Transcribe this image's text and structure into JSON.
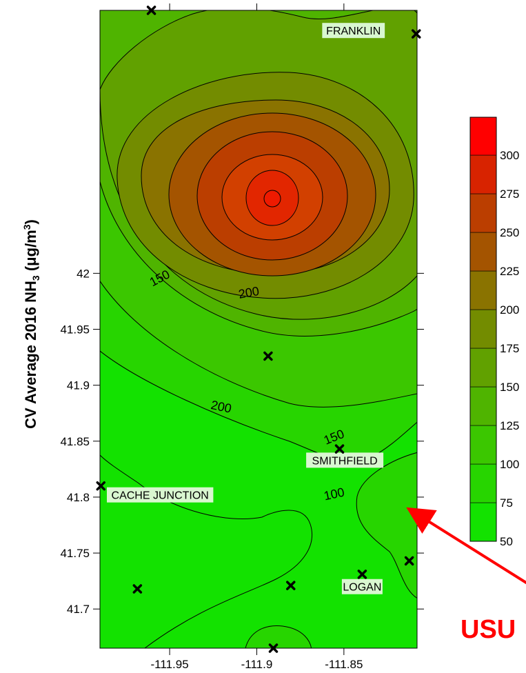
{
  "chart_data": {
    "type": "contour",
    "ylabel_parts": [
      "CV Average 2016 NH",
      "3",
      " (μg/m",
      "3",
      ")"
    ],
    "xlim": [
      -111.99,
      -111.808
    ],
    "ylim": [
      41.665,
      42.235
    ],
    "x_ticks": [
      {
        "value": -111.95,
        "label": "-111.95"
      },
      {
        "value": -111.9,
        "label": "-111.9"
      },
      {
        "value": -111.85,
        "label": "-111.85"
      }
    ],
    "y_ticks": [
      {
        "value": 42.0,
        "label": "42"
      },
      {
        "value": 41.95,
        "label": "41.95"
      },
      {
        "value": 41.9,
        "label": "41.9"
      },
      {
        "value": 41.85,
        "label": "41.85"
      },
      {
        "value": 41.8,
        "label": "41.8"
      },
      {
        "value": 41.75,
        "label": "41.75"
      },
      {
        "value": 41.7,
        "label": "41.7"
      }
    ],
    "contour_levels": [
      50,
      75,
      100,
      125,
      150,
      175,
      200,
      225,
      250,
      275,
      300
    ],
    "level_colors": [
      "#13e200",
      "#27d500",
      "#3bc700",
      "#4fb400",
      "#61a100",
      "#738c00",
      "#8a7300",
      "#a45400",
      "#bb3e00",
      "#d82300",
      "#ff0000"
    ],
    "contour_labels": [
      {
        "text": "150",
        "x": -111.9555,
        "y": 41.995,
        "angle": -28
      },
      {
        "text": "200",
        "x": -111.9045,
        "y": 41.982,
        "angle": -10
      },
      {
        "text": "200",
        "x": -111.9205,
        "y": 41.88,
        "angle": 12
      },
      {
        "text": "150",
        "x": -111.8555,
        "y": 41.853,
        "angle": -22
      },
      {
        "text": "100",
        "x": -111.8555,
        "y": 41.802,
        "angle": -12
      }
    ],
    "stations": [
      {
        "x": -111.9605,
        "y": 42.235
      },
      {
        "x": -111.8085,
        "y": 42.214
      },
      {
        "x": -111.8935,
        "y": 41.926
      },
      {
        "x": -111.8525,
        "y": 41.843
      },
      {
        "x": -111.9895,
        "y": 41.81
      },
      {
        "x": -111.8125,
        "y": 41.743
      },
      {
        "x": -111.8395,
        "y": 41.731
      },
      {
        "x": -111.8805,
        "y": 41.721
      },
      {
        "x": -111.9685,
        "y": 41.718
      },
      {
        "x": -111.8905,
        "y": 41.665
      }
    ],
    "places": [
      {
        "name": "FRANKLIN",
        "x": -111.8445,
        "y": 42.217
      },
      {
        "name": "SMITHFIELD",
        "x": -111.8495,
        "y": 41.833
      },
      {
        "name": "CACHE JUNCTION",
        "x": -111.9555,
        "y": 41.802
      },
      {
        "name": "LOGAN",
        "x": -111.8395,
        "y": 41.72
      }
    ],
    "colorbar_ticks": [
      "50",
      "75",
      "100",
      "125",
      "150",
      "175",
      "200",
      "225",
      "250",
      "275",
      "300"
    ],
    "annotation": {
      "text": "USU",
      "color": "#ff0000"
    }
  }
}
